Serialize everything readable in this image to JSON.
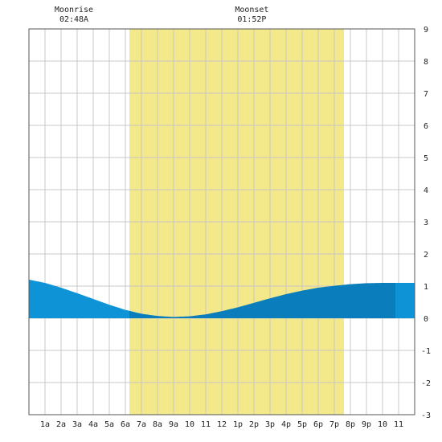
{
  "chart_data": {
    "type": "area",
    "title": "",
    "xlabel": "",
    "ylabel": "",
    "x_ticks": [
      "1a",
      "2a",
      "3a",
      "4a",
      "5a",
      "6a",
      "7a",
      "8a",
      "9a",
      "10",
      "11",
      "12",
      "1p",
      "2p",
      "3p",
      "4p",
      "5p",
      "6p",
      "7p",
      "8p",
      "9p",
      "10",
      "11"
    ],
    "xlim": [
      0,
      24
    ],
    "ylim": [
      -3,
      9
    ],
    "y_ticks": [
      -3,
      -2,
      -1,
      0,
      1,
      2,
      3,
      4,
      5,
      6,
      7,
      8,
      9
    ],
    "grid": true,
    "daylight": {
      "start_hour": 6.25,
      "end_hour": 19.6,
      "color": "#f3e98a"
    },
    "annotations": [
      {
        "label": "Moonrise",
        "time": "02:48A",
        "hour": 2.8
      },
      {
        "label": "Moonset",
        "time": "01:52P",
        "hour": 13.87
      }
    ],
    "series": [
      {
        "x": [
          0,
          1,
          2,
          3,
          4,
          5,
          6,
          7,
          8,
          9,
          10,
          11,
          12,
          13,
          14,
          15,
          16,
          17,
          18,
          19,
          20,
          21,
          22,
          23,
          24
        ],
        "y": [
          1.2,
          1.1,
          0.95,
          0.78,
          0.6,
          0.42,
          0.26,
          0.14,
          0.07,
          0.04,
          0.06,
          0.12,
          0.22,
          0.34,
          0.48,
          0.62,
          0.75,
          0.86,
          0.95,
          1.01,
          1.06,
          1.09,
          1.1,
          1.1,
          1.1
        ]
      }
    ],
    "colors": {
      "night_fill": "#0d93d6",
      "day_fill": "#0a7dbd",
      "grid": "#c8c8c8",
      "axis": "#555555"
    }
  }
}
